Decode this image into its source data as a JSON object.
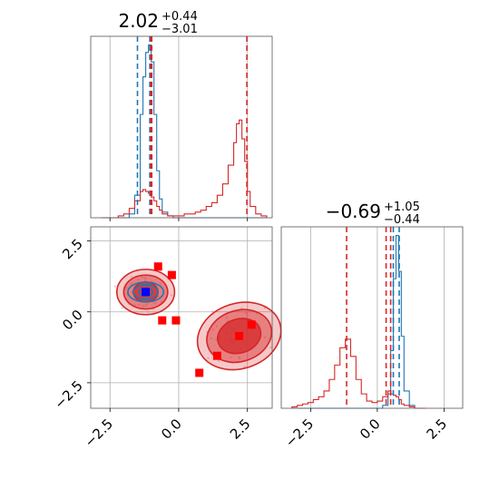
{
  "chart_data": [
    {
      "type": "histogram",
      "panel": "top-left",
      "title": {
        "value": "2.02",
        "plus": "+0.44",
        "minus": "−3.01"
      },
      "xlim": [
        -3.2,
        3.4
      ],
      "bins": [
        -2.8,
        -2.6,
        -2.4,
        -2.2,
        -2.0,
        -1.8,
        -1.6,
        -1.4,
        -1.3,
        -1.2,
        -1.1,
        -1.0,
        -0.9,
        -0.8,
        -0.7,
        -0.6,
        -0.4,
        -0.2,
        0.0,
        0.2,
        0.4,
        0.6,
        0.8,
        1.0,
        1.2,
        1.4,
        1.6,
        1.8,
        2.0,
        2.1,
        2.2,
        2.3,
        2.4,
        2.5,
        2.6,
        2.8,
        3.0,
        3.2
      ],
      "series": [
        {
          "color": "#1f77b4",
          "values": [
            0,
            0,
            0,
            0,
            0,
            2,
            12,
            55,
            75,
            88,
            92,
            83,
            55,
            25,
            10,
            3,
            1,
            0,
            0,
            0,
            0,
            0,
            0,
            0,
            0,
            0,
            0,
            0,
            0,
            0,
            0,
            0,
            0,
            0,
            0,
            0,
            0
          ]
        },
        {
          "color": "#d62728",
          "values": [
            0,
            0,
            0,
            1,
            2,
            5,
            9,
            14,
            15,
            14,
            13,
            11,
            9,
            6,
            4,
            2,
            1,
            1,
            1,
            2,
            2,
            3,
            4,
            6,
            8,
            12,
            18,
            28,
            40,
            50,
            52,
            42,
            30,
            14,
            6,
            2,
            1
          ]
        }
      ],
      "vlines": [
        {
          "x": -1.5,
          "color": "#1f77b4"
        },
        {
          "x": -1.05,
          "color": "#1f77b4"
        },
        {
          "x": -0.98,
          "color": "#d62728"
        },
        {
          "x": -1.02,
          "color": "#d62728"
        },
        {
          "x": 2.48,
          "color": "#d62728"
        }
      ]
    },
    {
      "type": "scatter",
      "panel": "bottom-left",
      "xlim": [
        -3.2,
        3.4
      ],
      "ylim": [
        -3.4,
        3.0
      ],
      "xticks": [
        "−2.5",
        "0.0",
        "2.5"
      ],
      "yticks": [
        "2.5",
        "0.0",
        "−2.5"
      ],
      "xtick_values": [
        -2.5,
        0.0,
        2.5
      ],
      "ytick_values": [
        2.5,
        0.0,
        -2.5
      ],
      "markers_red": [
        [
          -0.75,
          1.6
        ],
        [
          -0.25,
          1.3
        ],
        [
          -0.6,
          -0.3
        ],
        [
          -0.1,
          -0.3
        ],
        [
          2.2,
          -0.85
        ],
        [
          2.65,
          -0.45
        ],
        [
          1.4,
          -1.55
        ],
        [
          0.75,
          -2.15
        ]
      ],
      "markers_blue": [
        [
          -1.2,
          0.7
        ]
      ],
      "contours_red": [
        {
          "cx": -1.2,
          "cy": 0.7,
          "rx": 1.05,
          "ry": 0.8
        },
        {
          "cx": -1.2,
          "cy": 0.7,
          "rx": 0.8,
          "ry": 0.6
        },
        {
          "cx": -1.2,
          "cy": 0.7,
          "rx": 0.45,
          "ry": 0.35
        },
        {
          "cx": 2.2,
          "cy": -0.85,
          "rx": 1.55,
          "ry": 1.15
        },
        {
          "cx": 2.2,
          "cy": -0.85,
          "rx": 1.2,
          "ry": 0.9
        },
        {
          "cx": 2.2,
          "cy": -0.85,
          "rx": 0.8,
          "ry": 0.6
        }
      ],
      "contours_blue": [
        {
          "cx": -1.2,
          "cy": 0.7,
          "rx": 0.65,
          "ry": 0.35
        },
        {
          "cx": -1.2,
          "cy": 0.7,
          "rx": 0.45,
          "ry": 0.25
        },
        {
          "cx": -1.2,
          "cy": 0.7,
          "rx": 0.25,
          "ry": 0.15
        }
      ]
    },
    {
      "type": "histogram",
      "panel": "bottom-right",
      "title": {
        "value": "−0.69",
        "plus": "+1.05",
        "minus": "−0.44"
      },
      "xlim": [
        -3.6,
        3.2
      ],
      "xticks": [
        "−2.5",
        "0.0",
        "2.5"
      ],
      "xtick_values": [
        -2.5,
        0.0,
        2.5
      ],
      "bins": [
        -3.2,
        -3.0,
        -2.8,
        -2.6,
        -2.4,
        -2.2,
        -2.0,
        -1.8,
        -1.6,
        -1.4,
        -1.2,
        -1.0,
        -0.8,
        -0.6,
        -0.4,
        -0.2,
        0.0,
        0.2,
        0.4,
        0.5,
        0.6,
        0.7,
        0.8,
        0.9,
        1.0,
        1.2,
        1.4,
        1.6,
        1.8
      ],
      "series": [
        {
          "color": "#1f77b4",
          "values": [
            0,
            0,
            0,
            0,
            0,
            0,
            0,
            0,
            0,
            0,
            0,
            0,
            0,
            0,
            0,
            0,
            0,
            2,
            10,
            40,
            90,
            120,
            95,
            50,
            12,
            2,
            0,
            0
          ]
        },
        {
          "color": "#d62728",
          "values": [
            1,
            2,
            3,
            4,
            6,
            8,
            12,
            20,
            30,
            42,
            48,
            36,
            20,
            10,
            5,
            4,
            5,
            8,
            12,
            10,
            9,
            8,
            6,
            3,
            2,
            1,
            0,
            0
          ]
        }
      ],
      "vlines": [
        {
          "x": -1.15,
          "color": "#d62728"
        },
        {
          "x": 0.33,
          "color": "#d62728"
        },
        {
          "x": 0.5,
          "color": "#d62728"
        },
        {
          "x": 0.82,
          "color": "#1f77b4"
        },
        {
          "x": 0.6,
          "color": "#1f77b4"
        }
      ]
    }
  ]
}
